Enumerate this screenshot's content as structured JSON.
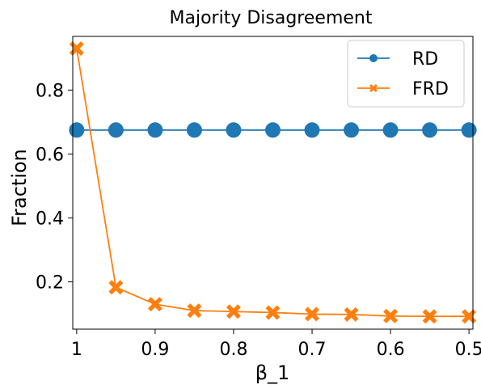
{
  "chart_data": {
    "type": "line",
    "title": "Majority Disagreement",
    "xlabel": "β_1",
    "ylabel": "Fraction",
    "x": [
      1.0,
      0.95,
      0.9,
      0.85,
      0.8,
      0.75,
      0.7,
      0.65,
      0.6,
      0.55,
      0.5
    ],
    "x_ticks": [
      1.0,
      0.9,
      0.8,
      0.7,
      0.6,
      0.5
    ],
    "x_tick_labels": [
      "1",
      "0.9",
      "0.8",
      "0.7",
      "0.6",
      "0.5"
    ],
    "xlim": [
      1.005,
      0.495
    ],
    "x_inverted": true,
    "y_ticks": [
      0.2,
      0.4,
      0.6,
      0.8
    ],
    "y_tick_labels": [
      "0.2",
      "0.4",
      "0.6",
      "0.8"
    ],
    "ylim": [
      0.052,
      0.968
    ],
    "grid": false,
    "legend_position": "upper right",
    "series": [
      {
        "name": "RD",
        "color": "#1f77b4",
        "marker": "circle",
        "values": [
          0.675,
          0.675,
          0.675,
          0.675,
          0.675,
          0.675,
          0.675,
          0.675,
          0.675,
          0.675,
          0.675
        ]
      },
      {
        "name": "FRD",
        "color": "#ff7f0e",
        "marker": "x",
        "values": [
          0.93,
          0.183,
          0.13,
          0.11,
          0.107,
          0.104,
          0.099,
          0.098,
          0.093,
          0.092,
          0.092
        ]
      }
    ]
  }
}
